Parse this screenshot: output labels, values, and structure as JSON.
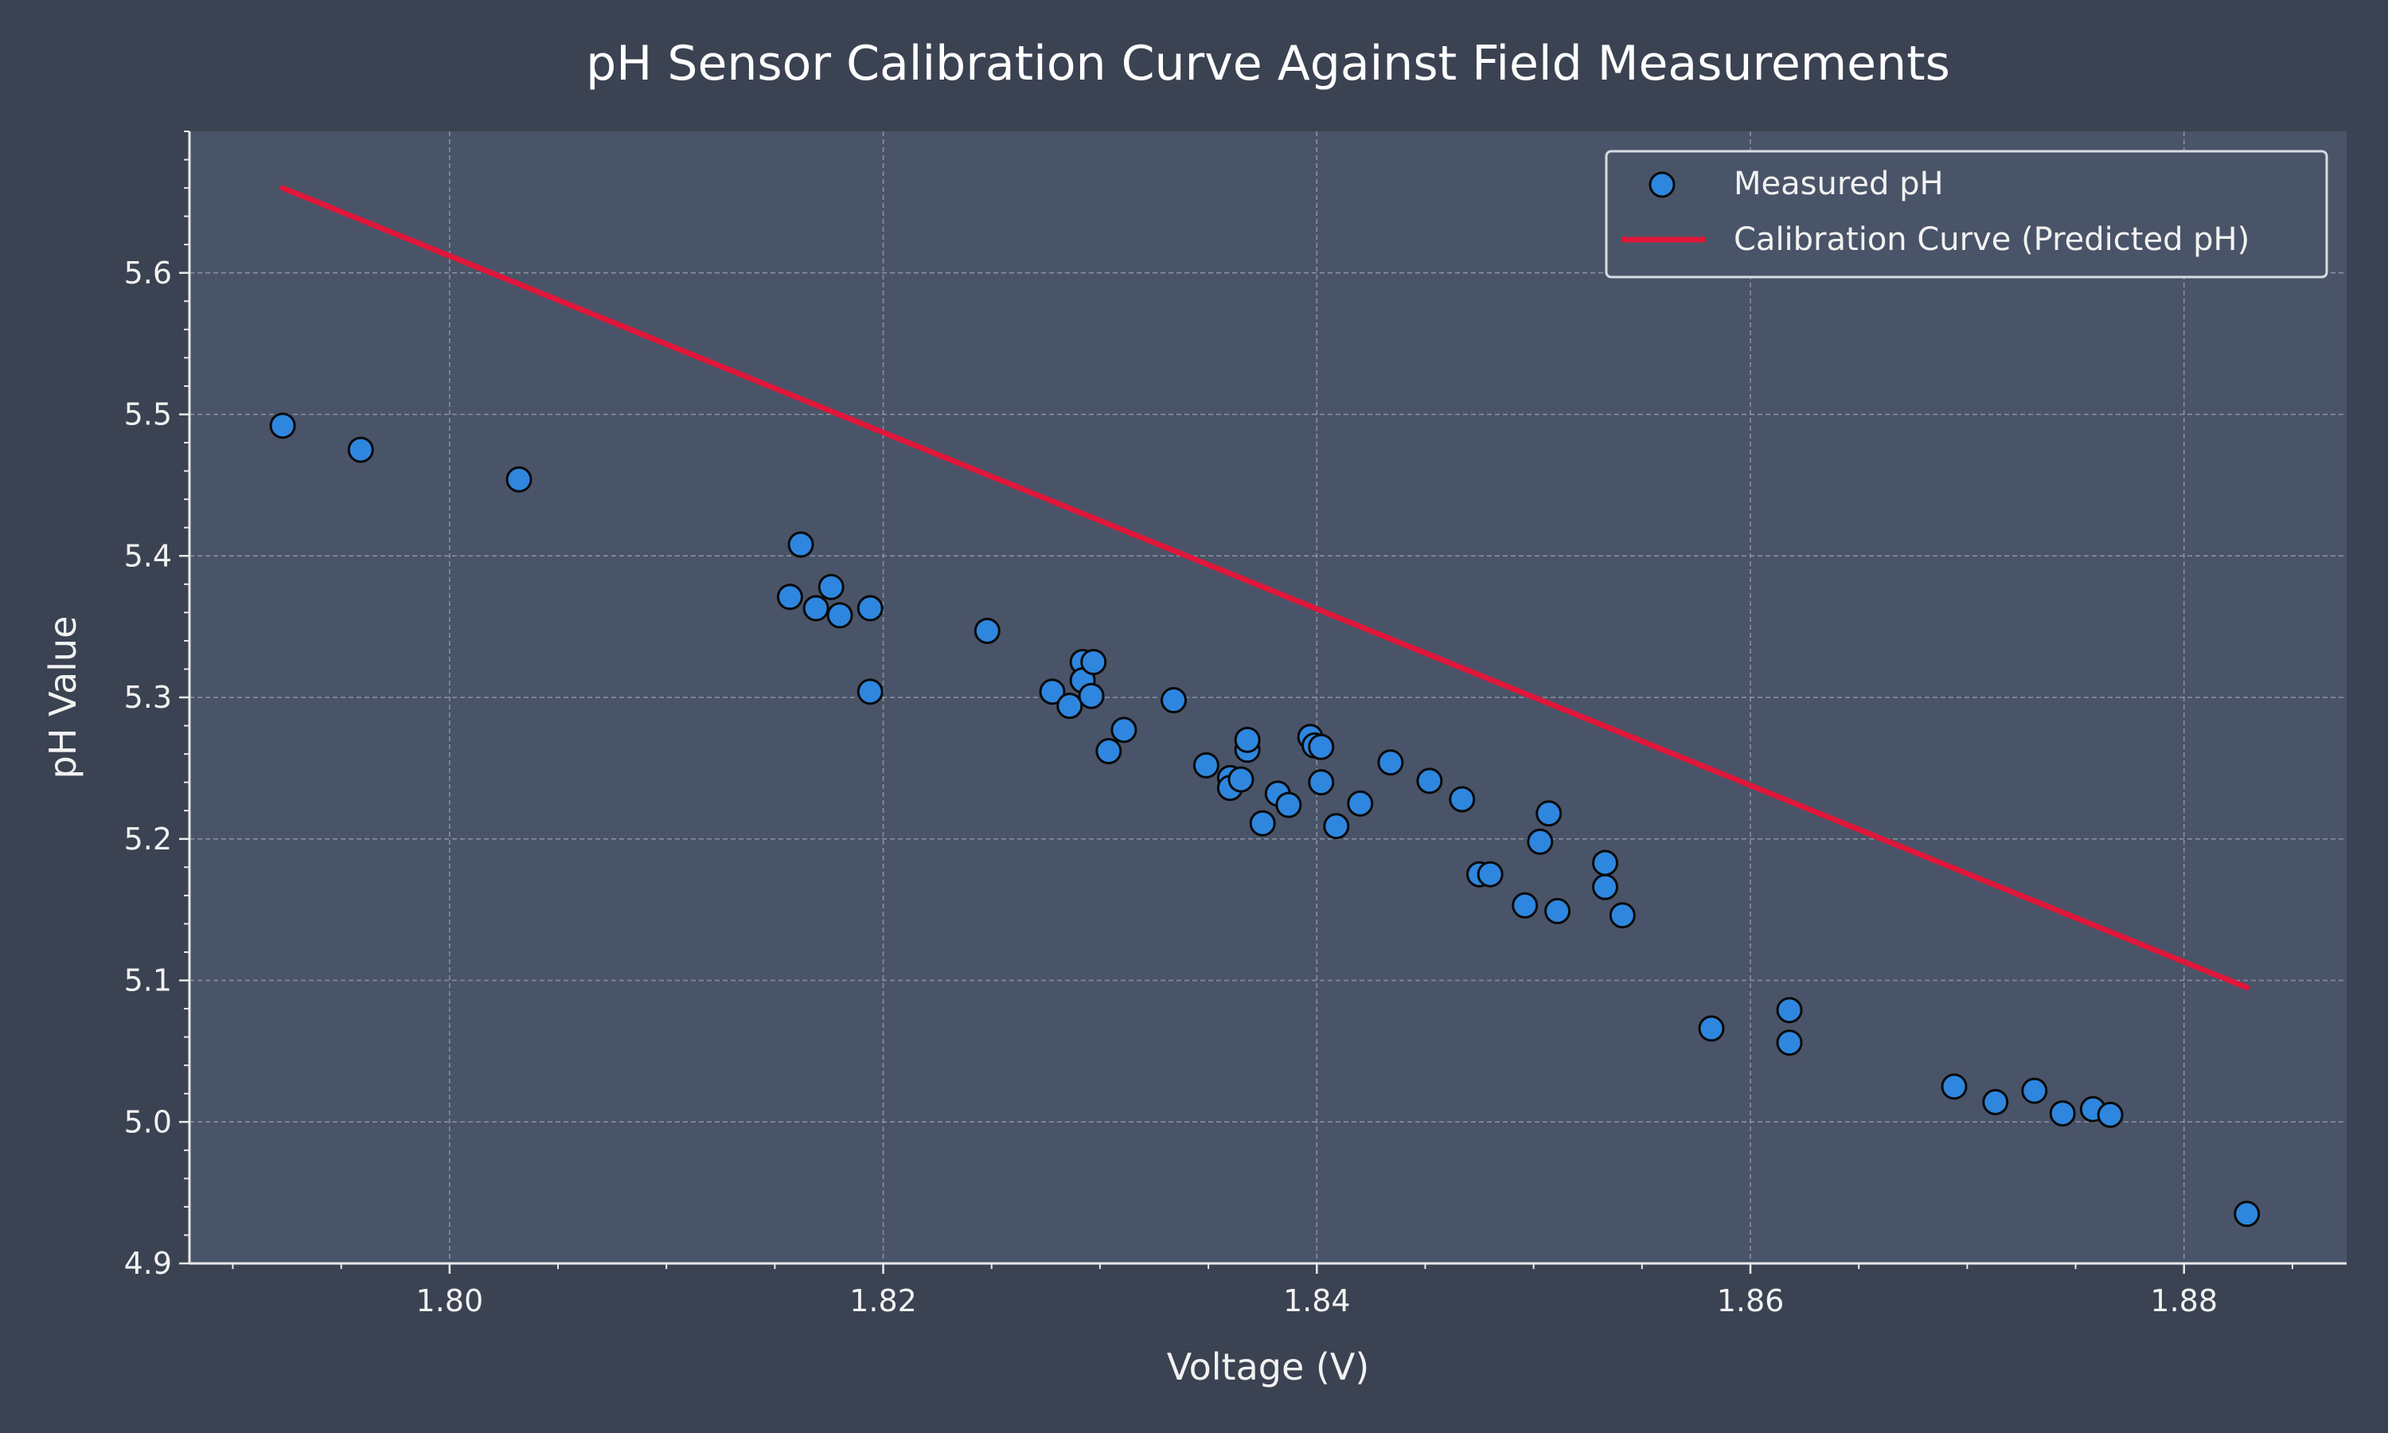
{
  "chart_data": {
    "type": "scatter",
    "title": "pH Sensor Calibration Curve Against Field Measurements",
    "xlabel": "Voltage (V)",
    "ylabel": "pH Value",
    "xlim": [
      1.788,
      1.8875
    ],
    "ylim": [
      4.9,
      5.7
    ],
    "x_ticks": [
      1.8,
      1.82,
      1.84,
      1.86,
      1.88
    ],
    "x_tick_labels": [
      "1.80",
      "1.82",
      "1.84",
      "1.86",
      "1.88"
    ],
    "y_ticks": [
      4.9,
      5.0,
      5.1,
      5.2,
      5.3,
      5.4,
      5.5,
      5.6
    ],
    "y_tick_labels": [
      "4.9",
      "5.0",
      "5.1",
      "5.2",
      "5.3",
      "5.4",
      "5.5",
      "5.6"
    ],
    "grid": true,
    "legend_position": "top-right",
    "colors": {
      "figure_bg": "#3b4252",
      "plot_bg": "#4a5468",
      "marker_fill": "#2e86de",
      "marker_edge": "#0a0a0a",
      "line": "#e0173a",
      "grid": "#9aa3b5",
      "axis": "#e8e8e8"
    },
    "series": [
      {
        "name": "Measured pH",
        "kind": "scatter",
        "points": [
          [
            1.7923,
            5.492
          ],
          [
            1.7959,
            5.475
          ],
          [
            1.8032,
            5.454
          ],
          [
            1.8157,
            5.371
          ],
          [
            1.8162,
            5.408
          ],
          [
            1.8169,
            5.363
          ],
          [
            1.8176,
            5.378
          ],
          [
            1.818,
            5.358
          ],
          [
            1.8194,
            5.363
          ],
          [
            1.8194,
            5.304
          ],
          [
            1.8248,
            5.347
          ],
          [
            1.8278,
            5.304
          ],
          [
            1.8286,
            5.294
          ],
          [
            1.8292,
            5.325
          ],
          [
            1.8292,
            5.312
          ],
          [
            1.8297,
            5.325
          ],
          [
            1.8296,
            5.301
          ],
          [
            1.8304,
            5.262
          ],
          [
            1.8311,
            5.277
          ],
          [
            1.8334,
            5.298
          ],
          [
            1.8349,
            5.252
          ],
          [
            1.836,
            5.243
          ],
          [
            1.836,
            5.236
          ],
          [
            1.8365,
            5.242
          ],
          [
            1.8368,
            5.263
          ],
          [
            1.8368,
            5.27
          ],
          [
            1.8375,
            5.211
          ],
          [
            1.8382,
            5.232
          ],
          [
            1.8387,
            5.224
          ],
          [
            1.8397,
            5.272
          ],
          [
            1.8399,
            5.266
          ],
          [
            1.8402,
            5.265
          ],
          [
            1.8402,
            5.24
          ],
          [
            1.8409,
            5.209
          ],
          [
            1.842,
            5.225
          ],
          [
            1.8434,
            5.254
          ],
          [
            1.8452,
            5.241
          ],
          [
            1.8467,
            5.228
          ],
          [
            1.8475,
            5.175
          ],
          [
            1.848,
            5.175
          ],
          [
            1.8496,
            5.153
          ],
          [
            1.8503,
            5.198
          ],
          [
            1.8507,
            5.218
          ],
          [
            1.8511,
            5.149
          ],
          [
            1.8533,
            5.183
          ],
          [
            1.8533,
            5.166
          ],
          [
            1.8541,
            5.146
          ],
          [
            1.8582,
            5.066
          ],
          [
            1.8618,
            5.079
          ],
          [
            1.8618,
            5.056
          ],
          [
            1.8694,
            5.025
          ],
          [
            1.8713,
            5.014
          ],
          [
            1.8731,
            5.022
          ],
          [
            1.8744,
            5.006
          ],
          [
            1.8758,
            5.009
          ],
          [
            1.8766,
            5.005
          ],
          [
            1.8829,
            4.935
          ]
        ]
      },
      {
        "name": "Calibration Curve (Predicted pH)",
        "kind": "line",
        "points": [
          [
            1.7923,
            5.66
          ],
          [
            1.8829,
            5.095
          ]
        ]
      }
    ]
  }
}
